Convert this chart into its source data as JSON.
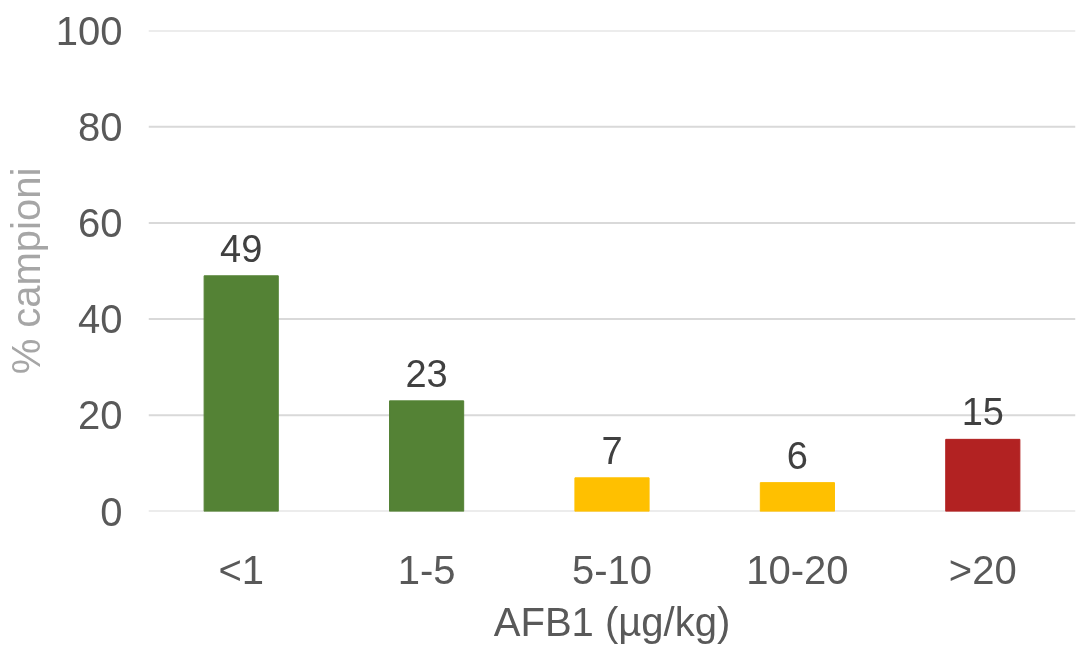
{
  "chart_data": {
    "type": "bar",
    "xlabel": "AFB1 (µg/kg)",
    "ylabel": "% campioni",
    "categories": [
      "<1",
      "1-5",
      "5-10",
      "10-20",
      ">20"
    ],
    "values": [
      49,
      23,
      7,
      6,
      15
    ],
    "colors": [
      "#548235",
      "#548235",
      "#ffc000",
      "#ffc000",
      "#b22222"
    ],
    "ylim": [
      0,
      100
    ],
    "yticks": [
      0,
      20,
      40,
      60,
      80,
      100
    ],
    "grid": "y",
    "data_labels": true
  }
}
